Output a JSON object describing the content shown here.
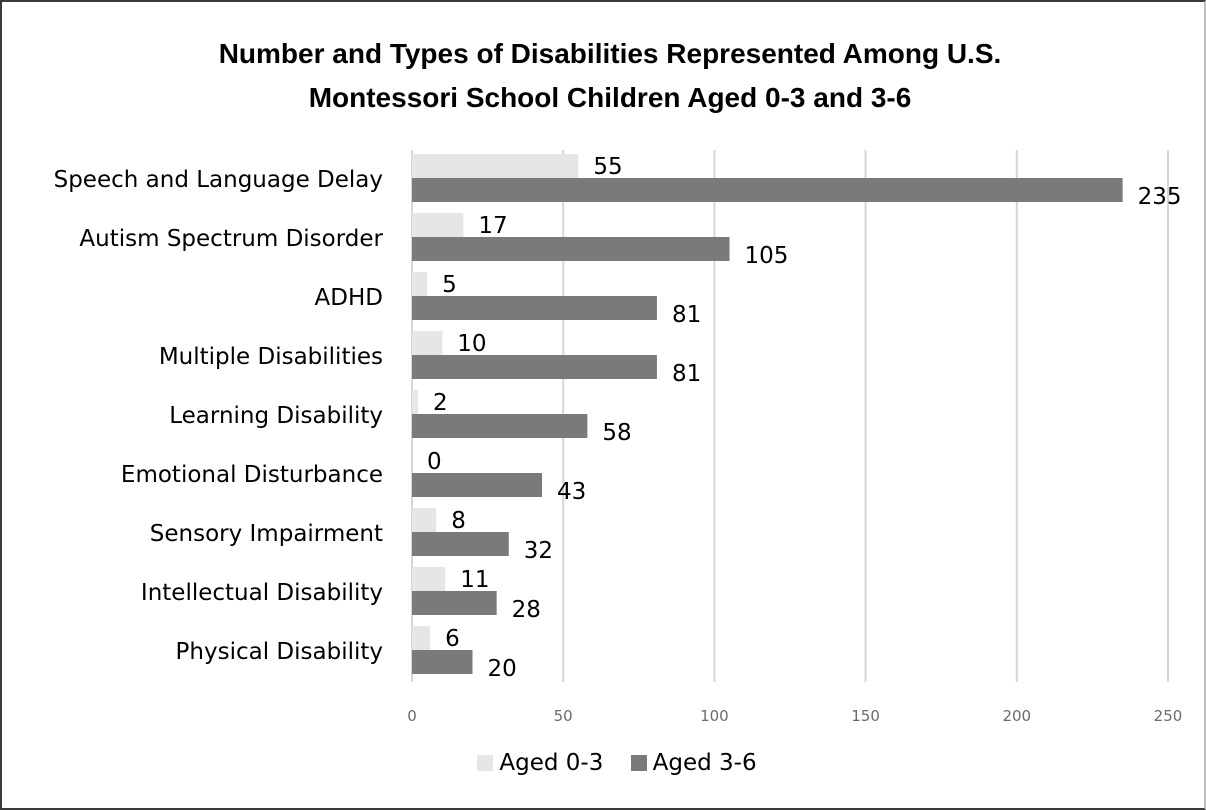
{
  "chart_data": {
    "type": "bar",
    "orientation": "horizontal",
    "title": [
      "Number and Types of Disabilities Represented Among U.S.",
      "Montessori School Children Aged 0-3 and 3-6"
    ],
    "categories": [
      "Speech and Language Delay",
      "Autism Spectrum Disorder",
      "ADHD",
      "Multiple Disabilities",
      "Learning Disability",
      "Emotional Disturbance",
      "Sensory Impairment",
      "Intellectual Disability",
      "Physical Disability"
    ],
    "series": [
      {
        "name": "Aged 0-3",
        "color": "#e6e6e6",
        "values": [
          55,
          17,
          5,
          10,
          2,
          0,
          8,
          11,
          6
        ]
      },
      {
        "name": "Aged 3-6",
        "color": "#7a7a7a",
        "values": [
          235,
          105,
          81,
          81,
          58,
          43,
          32,
          28,
          20
        ]
      }
    ],
    "xlim": [
      0,
      250
    ],
    "xticks": [
      0,
      50,
      100,
      150,
      200,
      250
    ],
    "grid": true,
    "legend_position": "bottom"
  }
}
